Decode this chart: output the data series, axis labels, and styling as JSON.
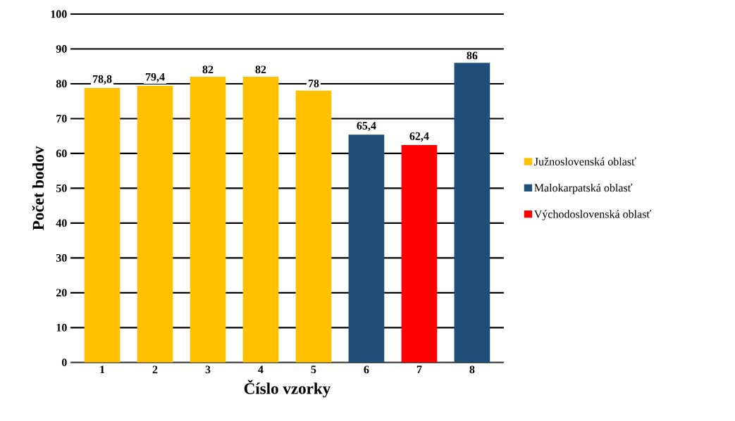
{
  "chart_data": {
    "type": "bar",
    "xlabel": "Číslo vzorky",
    "ylabel": "Počet bodov",
    "categories": [
      "1",
      "2",
      "3",
      "4",
      "5",
      "6",
      "7",
      "8"
    ],
    "series": [
      {
        "name": "Južnoslovenská oblasť",
        "color": "#ffc000",
        "values": [
          78.8,
          79.4,
          82,
          82,
          78,
          null,
          null,
          null
        ],
        "value_labels": [
          "78,8",
          "79,4",
          "82",
          "82",
          "78",
          null,
          null,
          null
        ]
      },
      {
        "name": "Malokarpatská oblasť",
        "color": "#1f4e79",
        "values": [
          null,
          null,
          null,
          null,
          null,
          65.4,
          null,
          86
        ],
        "value_labels": [
          null,
          null,
          null,
          null,
          null,
          "65,4",
          null,
          "86"
        ]
      },
      {
        "name": "Východoslovenská oblasť",
        "color": "#ff0000",
        "values": [
          null,
          null,
          null,
          null,
          null,
          null,
          62.4,
          null
        ],
        "value_labels": [
          null,
          null,
          null,
          null,
          null,
          null,
          "62,4",
          null
        ]
      }
    ],
    "ylim": [
      0,
      100
    ],
    "yticks": [
      0,
      10,
      20,
      30,
      40,
      50,
      60,
      70,
      80,
      90,
      100
    ],
    "grid": "y",
    "legend": "right"
  }
}
